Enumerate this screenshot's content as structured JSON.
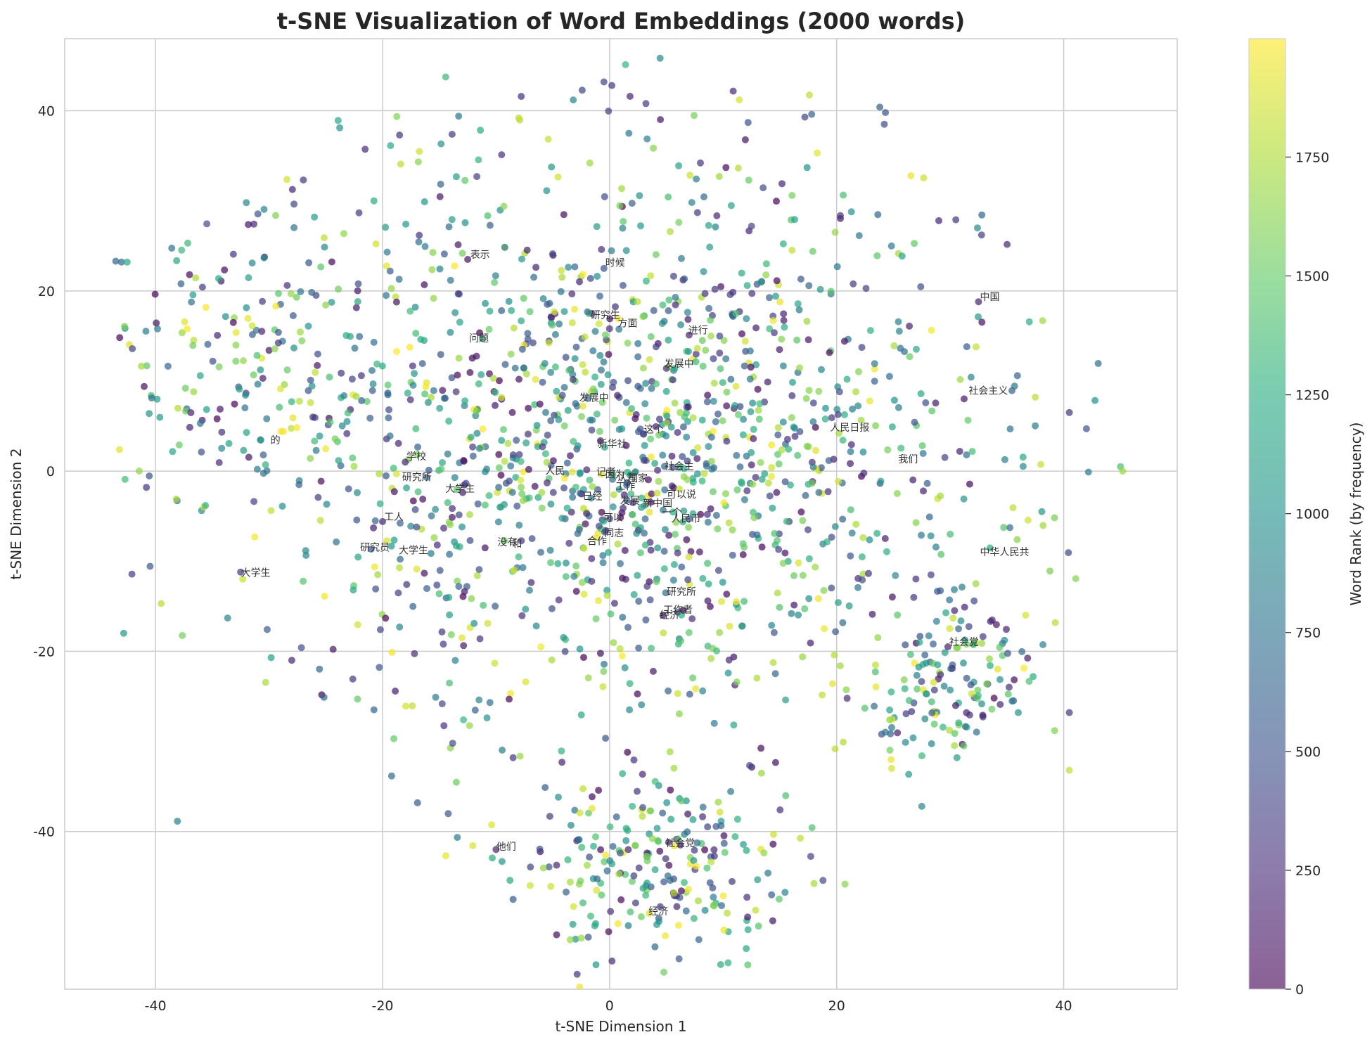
{
  "chart_data": {
    "type": "scatter",
    "title": "t-SNE Visualization of Word Embeddings (2000 words)",
    "xlabel": "t-SNE Dimension 1",
    "ylabel": "t-SNE Dimension 2",
    "xlim": [
      -48,
      50
    ],
    "ylim": [
      -57.5,
      48
    ],
    "xticks": [
      -40,
      -20,
      0,
      20,
      40
    ],
    "yticks": [
      -40,
      -20,
      0,
      20,
      40
    ],
    "grid": true,
    "colorbar": {
      "label": "Word Rank (by frequency)",
      "min": 0,
      "max": 1999,
      "ticks": [
        0,
        250,
        500,
        750,
        1000,
        1250,
        1500,
        1750
      ],
      "colormap": "viridis",
      "alpha": 0.7
    },
    "total_points": 2000,
    "points_sample": [
      [
        -43.5,
        23.3,
        650
      ],
      [
        -43,
        23.2,
        700
      ],
      [
        -42.5,
        23.2,
        1200
      ],
      [
        -41,
        9.4,
        100
      ],
      [
        -42.8,
        -18,
        1050
      ],
      [
        -40.8,
        -1.8,
        300
      ],
      [
        -39.5,
        -14.7,
        1800
      ],
      [
        -32.5,
        -11.2,
        300
      ],
      [
        -32,
        29.8,
        900
      ],
      [
        -30.5,
        1.8,
        600
      ],
      [
        -28,
        -21,
        200
      ],
      [
        -26,
        28.2,
        1100
      ],
      [
        -22.2,
        -25.3,
        1500
      ],
      [
        -18.5,
        37.3,
        300
      ],
      [
        -13.3,
        39.4,
        800
      ],
      [
        -12.5,
        23.5,
        100
      ],
      [
        -10,
        -42,
        200
      ],
      [
        -8,
        39.2,
        1800
      ],
      [
        -7,
        -46,
        1850
      ],
      [
        -3.2,
        41.2,
        900
      ],
      [
        -0.5,
        43.2,
        400
      ],
      [
        0.2,
        42.8,
        300
      ],
      [
        1.8,
        41.6,
        200
      ],
      [
        3.2,
        40.8,
        350
      ],
      [
        4,
        -52.8,
        700
      ],
      [
        4.7,
        -16,
        150
      ],
      [
        5.2,
        -41.2,
        300
      ],
      [
        8,
        34.2,
        300
      ],
      [
        12.2,
        38.7,
        500
      ],
      [
        17.2,
        39.3,
        400
      ],
      [
        17.8,
        39.6,
        650
      ],
      [
        17.4,
        33.7,
        1000
      ],
      [
        23.8,
        40.4,
        600
      ],
      [
        24.3,
        39.8,
        500
      ],
      [
        24.2,
        38.5,
        450
      ],
      [
        29,
        27.8,
        200
      ],
      [
        30.5,
        27.9,
        300
      ],
      [
        32.5,
        18.8,
        200
      ],
      [
        37.5,
        8.2,
        1800
      ],
      [
        40.5,
        6.5,
        300
      ],
      [
        42,
        4.7,
        500
      ],
      [
        45,
        0.5,
        1400
      ],
      [
        45.2,
        0,
        1700
      ],
      [
        27.5,
        -37.2,
        900
      ],
      [
        36,
        -26.8,
        1000
      ],
      [
        40.5,
        -26.8,
        300
      ],
      [
        40.5,
        -33.2,
        1800
      ],
      [
        39.2,
        -28.8,
        1600
      ],
      [
        31.9,
        -24.7,
        1850
      ],
      [
        29.8,
        -19.5,
        200
      ],
      [
        31.2,
        -30.5,
        1500
      ],
      [
        30.6,
        -31.8,
        1100
      ],
      [
        19.8,
        -20.4,
        1750
      ],
      [
        15.5,
        -25.4,
        1100
      ],
      [
        11.2,
        -23.4,
        1600
      ],
      [
        8.2,
        -24.4,
        900
      ],
      [
        2,
        -37.2,
        1300
      ],
      [
        -8.5,
        -31.8,
        300
      ],
      [
        -11.5,
        -25.4,
        900
      ],
      [
        -19,
        -29.7,
        1500
      ],
      [
        1.7,
        37.5,
        800
      ],
      [
        -0.5,
        22.5,
        500
      ],
      [
        7,
        15.1,
        200
      ],
      [
        5,
        11.4,
        300
      ],
      [
        -3,
        7.5,
        700
      ],
      [
        3,
        4.1,
        400
      ],
      [
        -18,
        1,
        200
      ],
      [
        -20,
        -5.6,
        200
      ],
      [
        -17,
        -6.2,
        400
      ],
      [
        -13.5,
        -8.3,
        1200
      ]
    ],
    "annotations": [
      {
        "text": "表示",
        "x": -12.4,
        "y": 23.5
      },
      {
        "text": "时候",
        "x": -0.5,
        "y": 22.6
      },
      {
        "text": "中国",
        "x": 32.5,
        "y": 18.8
      },
      {
        "text": "研究生",
        "x": -1.8,
        "y": 16.8
      },
      {
        "text": "方面",
        "x": 0.6,
        "y": 15.9
      },
      {
        "text": "进行",
        "x": 6.8,
        "y": 15.1
      },
      {
        "text": "问题",
        "x": -12.5,
        "y": 14.2
      },
      {
        "text": "发展中",
        "x": 4.7,
        "y": 11.4
      },
      {
        "text": "社会主义",
        "x": 31.5,
        "y": 8.4
      },
      {
        "text": "发展中",
        "x": -2.8,
        "y": 7.6
      },
      {
        "text": "这个",
        "x": 2.9,
        "y": 4.1
      },
      {
        "text": "人民日报",
        "x": 19.3,
        "y": 4.3
      },
      {
        "text": "的",
        "x": -30,
        "y": 2.9
      },
      {
        "text": "新华社",
        "x": -1.2,
        "y": 2.5
      },
      {
        "text": "学校",
        "x": -18,
        "y": 1.1
      },
      {
        "text": "我们",
        "x": 25.3,
        "y": 0.8
      },
      {
        "text": "社会主",
        "x": 4.7,
        "y": 0
      },
      {
        "text": "人民",
        "x": -5.8,
        "y": -0.5
      },
      {
        "text": "记者",
        "x": -1.3,
        "y": -0.6
      },
      {
        "text": "因为",
        "x": -0.5,
        "y": -0.9
      },
      {
        "text": "认为",
        "x": 0.5,
        "y": -1.2
      },
      {
        "text": "国家",
        "x": 1.5,
        "y": -1.3
      },
      {
        "text": "研究所",
        "x": -18.4,
        "y": -1.2
      },
      {
        "text": "大学生",
        "x": -14.6,
        "y": -2.5
      },
      {
        "text": "工作",
        "x": 0.4,
        "y": -2.2
      },
      {
        "text": "已经",
        "x": -2.5,
        "y": -3.3
      },
      {
        "text": "发展",
        "x": 0.8,
        "y": -3.8
      },
      {
        "text": "可以说",
        "x": 4.9,
        "y": -3.1
      },
      {
        "text": "新中国",
        "x": 2.8,
        "y": -4.1
      },
      {
        "text": "工人",
        "x": -20,
        "y": -5.6
      },
      {
        "text": "可以",
        "x": -0.7,
        "y": -5.7
      },
      {
        "text": "一个",
        "x": 4.5,
        "y": -5.1
      },
      {
        "text": "人民币",
        "x": 5.3,
        "y": -5.8
      },
      {
        "text": "同志",
        "x": -0.6,
        "y": -7.4
      },
      {
        "text": "合作",
        "x": -2.1,
        "y": -8.3
      },
      {
        "text": "没有",
        "x": -10,
        "y": -8.4
      },
      {
        "text": "和",
        "x": -8.7,
        "y": -8.6
      },
      {
        "text": "研究员",
        "x": -22.1,
        "y": -9
      },
      {
        "text": "大学生",
        "x": -18.7,
        "y": -9.3
      },
      {
        "text": "中华人民共",
        "x": 32.5,
        "y": -9.5
      },
      {
        "text": "大学生",
        "x": -32.6,
        "y": -11.8
      },
      {
        "text": "研究所",
        "x": 4.9,
        "y": -13.9
      },
      {
        "text": "工作者",
        "x": 4.6,
        "y": -15.9
      },
      {
        "text": "经济",
        "x": 4.3,
        "y": -16.5
      },
      {
        "text": "社会党",
        "x": 29.8,
        "y": -19.5
      },
      {
        "text": "社会党",
        "x": 4.8,
        "y": -41.8
      },
      {
        "text": "他们",
        "x": -10.1,
        "y": -42.2
      },
      {
        "text": "经济",
        "x": 3.3,
        "y": -49.4
      }
    ]
  }
}
